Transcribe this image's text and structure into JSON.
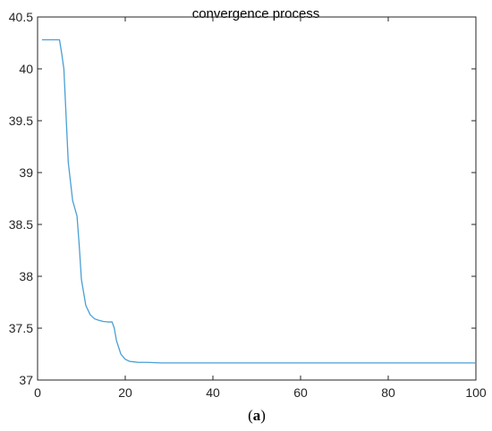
{
  "chart_data": {
    "type": "line",
    "title": "convergence process",
    "caption": {
      "prefix": "(",
      "letter": "a",
      "suffix": ")"
    },
    "xlabel": "",
    "ylabel": "",
    "xlim": [
      0,
      100
    ],
    "ylim": [
      37,
      40.5
    ],
    "xticks": [
      0,
      20,
      40,
      60,
      80,
      100
    ],
    "yticks": [
      37,
      37.5,
      38,
      38.5,
      39,
      39.5,
      40,
      40.5
    ],
    "grid": false,
    "line_color": "#4a9fd5",
    "series": [
      {
        "x": [
          1,
          2,
          3,
          4,
          5,
          5.5,
          6,
          6.5,
          7,
          8,
          9,
          9.5,
          10,
          11,
          12,
          13,
          14,
          15,
          16,
          17,
          17.5,
          18,
          19,
          20,
          21,
          22,
          23,
          25,
          27,
          28,
          30,
          40,
          50,
          60,
          70,
          80,
          90,
          100
        ],
        "y": [
          40.28,
          40.28,
          40.28,
          40.28,
          40.28,
          40.15,
          40.0,
          39.55,
          39.1,
          38.73,
          38.58,
          38.3,
          37.97,
          37.72,
          37.63,
          37.59,
          37.575,
          37.565,
          37.56,
          37.56,
          37.5,
          37.38,
          37.25,
          37.2,
          37.18,
          37.175,
          37.17,
          37.17,
          37.167,
          37.165,
          37.165,
          37.165,
          37.165,
          37.165,
          37.165,
          37.165,
          37.165,
          37.165
        ]
      }
    ]
  }
}
